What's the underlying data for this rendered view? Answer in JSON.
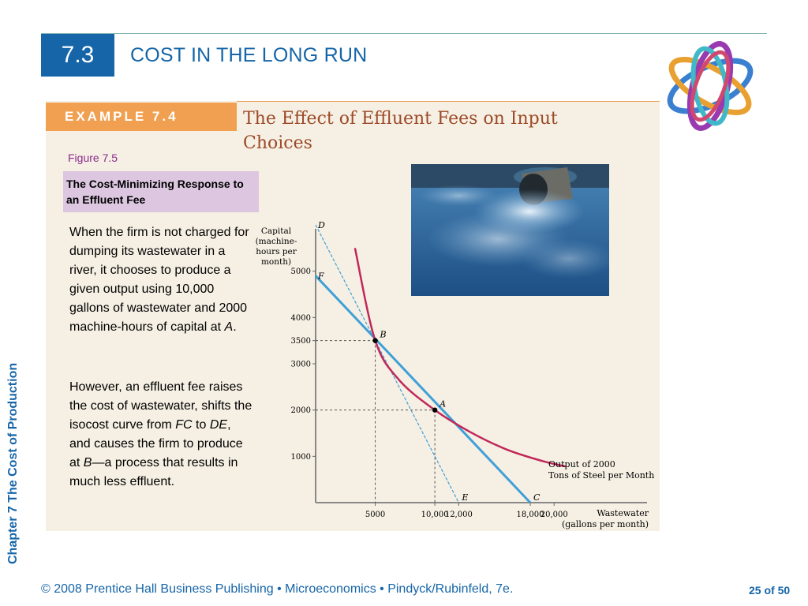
{
  "header": {
    "section": "7.3",
    "title": "COST IN THE LONG RUN"
  },
  "side_label": "Chapter 7  The Cost of Production",
  "example": {
    "tab_label": "EXAMPLE 7.4",
    "title": "The Effect of Effluent Fees on Input Choices",
    "figure_number": "Figure 7.5",
    "figure_caption": "The Cost-Minimizing Response to an Effluent Fee"
  },
  "body": {
    "para1": {
      "main": "When the firm is not charged for dumping its wastewater in a river, it chooses to produce a given output using 10,000 gallons of wastewater and 2000 machine-hours of capital at ",
      "italic": "A",
      "end": "."
    },
    "para2": {
      "p1": " However, an effluent fee raises the cost of wastewater, shifts the isocost curve from ",
      "i1": "FC",
      "p2": " to ",
      "i2": "DE",
      "p3": ", and causes the firm to produce at ",
      "i3": "B",
      "p4": "—a process that results in much less effluent."
    }
  },
  "footer": {
    "text": "© 2008 Prentice Hall Business Publishing  •  Microeconomics  •  Pindyck/Rubinfeld, 7e.",
    "page": "25 of 50"
  },
  "colors": {
    "accent_blue": "#1565a8",
    "isoquant": "#c0285a",
    "isocost": "#3fa0d8",
    "panel": "#f6f0e4",
    "tab": "#f0a050",
    "title_brown": "#9c4a28"
  },
  "chart_data": {
    "type": "line",
    "ylabel": [
      "Capital",
      "(machine-",
      "hours per",
      "month)"
    ],
    "xlabel": [
      "Wastewater",
      "(gallons per month)"
    ],
    "xlim": [
      0,
      22500
    ],
    "ylim": [
      0,
      6000
    ],
    "x_ticks": [
      {
        "value": 5000,
        "label": "5000"
      },
      {
        "value": 10000,
        "label": "10,000"
      },
      {
        "value": 12000,
        "label": "12,000"
      },
      {
        "value": 18000,
        "label": "18,000"
      },
      {
        "value": 20000,
        "label": "20,000"
      }
    ],
    "y_ticks": [
      {
        "value": 1000,
        "label": "1000"
      },
      {
        "value": 2000,
        "label": "2000"
      },
      {
        "value": 3000,
        "label": "3000"
      },
      {
        "value": 3500,
        "label": "3500"
      },
      {
        "value": 4000,
        "label": "4000"
      },
      {
        "value": 5000,
        "label": "5000"
      }
    ],
    "isoquant": {
      "name": "Output of 2000 Tons of Steel per Month",
      "label_lines": [
        "Output of 2000",
        "Tons of Steel per Month"
      ],
      "points": [
        [
          3300,
          5500
        ],
        [
          5000,
          3500
        ],
        [
          7000,
          2650
        ],
        [
          10000,
          2000
        ],
        [
          13000,
          1520
        ],
        [
          16000,
          1150
        ],
        [
          19000,
          900
        ],
        [
          21000,
          780
        ]
      ]
    },
    "isocost_FC": {
      "from": "F",
      "to": "C",
      "points": [
        [
          0,
          4900
        ],
        [
          18000,
          0
        ]
      ]
    },
    "isocost_DE": {
      "from": "D",
      "to": "E",
      "points": [
        [
          0,
          6000
        ],
        [
          12000,
          0
        ]
      ]
    },
    "points": [
      {
        "label": "A",
        "x": 10000,
        "y": 2000
      },
      {
        "label": "B",
        "x": 5000,
        "y": 3500
      }
    ],
    "endpoint_labels": [
      {
        "label": "D",
        "x": 0,
        "y": 6000
      },
      {
        "label": "F",
        "x": 0,
        "y": 4900
      },
      {
        "label": "E",
        "x": 12000,
        "y": 0
      },
      {
        "label": "C",
        "x": 18000,
        "y": 0
      }
    ]
  }
}
